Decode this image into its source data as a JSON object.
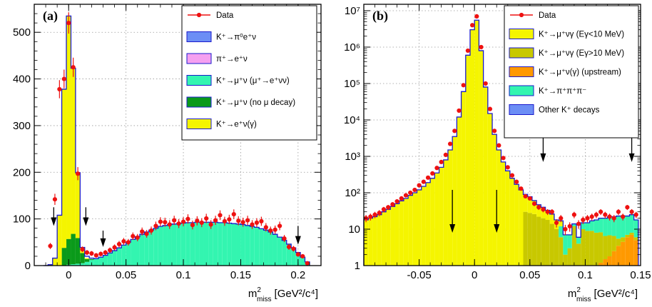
{
  "colors": {
    "k_pi0": "#6c8ef5",
    "pi_e": "#f5a0f0",
    "k_mu_decay": "#33f5b0",
    "k_mu_nodecay": "#0a9a1a",
    "k_e": "#f5f500",
    "data": "#ee1111",
    "outline": "#1a1acc",
    "k_mu_low": "#f5f500",
    "k_mu_high": "#c8c800",
    "k_mu_up": "#ff9900",
    "k_3pi": "#33f5b0",
    "other": "#6c8ef5"
  },
  "chart_data": [
    {
      "type": "bar",
      "label": "(a)",
      "xlabel_main": "m",
      "xlabel_sup": "2",
      "xlabel_sub": "miss",
      "xlabel_unit": "[GeV²/c⁴]",
      "xlim": [
        -0.03,
        0.22
      ],
      "ylim": [
        0,
        560
      ],
      "xticks": [
        {
          "v": 0,
          "t": "0"
        },
        {
          "v": 0.05,
          "t": "0.05"
        },
        {
          "v": 0.1,
          "t": "0.1"
        },
        {
          "v": 0.15,
          "t": "0.15"
        },
        {
          "v": 0.2,
          "t": "0.2"
        }
      ],
      "yticks": [
        {
          "v": 0,
          "t": "0"
        },
        {
          "v": 100,
          "t": "100"
        },
        {
          "v": 200,
          "t": "200"
        },
        {
          "v": 300,
          "t": "300"
        },
        {
          "v": 400,
          "t": "400"
        },
        {
          "v": 500,
          "t": "500"
        }
      ],
      "legend": [
        {
          "kind": "data",
          "color": "data",
          "text": "Data"
        },
        {
          "kind": "box",
          "color": "k_pi0",
          "text": "K⁺→π⁰e⁺ν"
        },
        {
          "kind": "box",
          "color": "pi_e",
          "text": "π⁺→e⁺ν"
        },
        {
          "kind": "box",
          "color": "k_mu_decay",
          "text": "K⁺→μ⁺ν (μ⁺→e⁺νν)"
        },
        {
          "kind": "box",
          "color": "k_mu_nodecay",
          "text": "K⁺→μ⁺ν (no μ decay)"
        },
        {
          "kind": "box",
          "color": "k_e",
          "text": "K⁺→e⁺ν(γ)"
        }
      ],
      "arrows": [
        {
          "x": -0.013,
          "y_top": 125,
          "y_bot": 85
        },
        {
          "x": 0.015,
          "y_top": 125,
          "y_bot": 85
        },
        {
          "x": 0.03,
          "y_top": 75,
          "y_bot": 40
        },
        {
          "x": 0.2,
          "y_top": 85,
          "y_bot": 45
        }
      ],
      "bin_width": 0.004,
      "stacks": [
        {
          "color": "k_mu_decay",
          "x": [
            -0.012,
            -0.008,
            -0.004,
            0.0,
            0.004,
            0.008,
            0.012,
            0.016,
            0.02,
            0.024,
            0.028,
            0.032,
            0.036,
            0.04,
            0.044,
            0.048,
            0.052,
            0.056,
            0.06,
            0.064,
            0.068,
            0.072,
            0.076,
            0.08,
            0.084,
            0.088,
            0.092,
            0.096,
            0.1,
            0.104,
            0.108,
            0.112,
            0.116,
            0.12,
            0.124,
            0.128,
            0.132,
            0.136,
            0.14,
            0.144,
            0.148,
            0.152,
            0.156,
            0.16,
            0.164,
            0.168,
            0.172,
            0.176,
            0.18,
            0.184,
            0.188,
            0.192,
            0.196,
            0.2,
            0.204,
            0.208
          ],
          "values": [
            0,
            0,
            0,
            2,
            3,
            4,
            5,
            8,
            12,
            15,
            18,
            22,
            27,
            32,
            38,
            44,
            50,
            56,
            62,
            67,
            72,
            76,
            80,
            84,
            86,
            88,
            89,
            90,
            91,
            92,
            92,
            93,
            93,
            93,
            93,
            93,
            92,
            92,
            91,
            90,
            89,
            88,
            86,
            84,
            82,
            79,
            76,
            72,
            67,
            61,
            54,
            46,
            38,
            28,
            18,
            8
          ]
        },
        {
          "color": "k_mu_nodecay",
          "x": [
            -0.004,
            0.0,
            0.004,
            0.008,
            0.012,
            0.016,
            0.02
          ],
          "values": [
            38,
            55,
            65,
            55,
            22,
            6,
            2
          ]
        },
        {
          "color": "k_e",
          "x": [
            -0.016,
            -0.012,
            -0.008,
            -0.004,
            0.0,
            0.004,
            0.008,
            0.012,
            0.016
          ],
          "values": [
            2,
            16,
            108,
            340,
            478,
            355,
            140,
            12,
            2
          ]
        }
      ],
      "total_outline": {
        "x": [
          -0.02,
          -0.016,
          -0.012,
          -0.008,
          -0.004,
          0.0,
          0.004,
          0.008,
          0.012,
          0.016,
          0.02,
          0.024,
          0.028,
          0.032,
          0.036,
          0.04,
          0.044,
          0.048,
          0.052,
          0.056,
          0.06,
          0.064,
          0.068,
          0.072,
          0.076,
          0.08,
          0.084,
          0.088,
          0.092,
          0.096,
          0.1,
          0.104,
          0.108,
          0.112,
          0.116,
          0.12,
          0.124,
          0.128,
          0.132,
          0.136,
          0.14,
          0.144,
          0.148,
          0.152,
          0.156,
          0.16,
          0.164,
          0.168,
          0.172,
          0.176,
          0.18,
          0.184,
          0.188,
          0.192,
          0.196,
          0.2,
          0.204,
          0.208
        ],
        "values": [
          0,
          2,
          16,
          108,
          378,
          535,
          423,
          199,
          39,
          20,
          16,
          15,
          18,
          22,
          27,
          32,
          38,
          44,
          50,
          56,
          62,
          67,
          72,
          76,
          80,
          84,
          86,
          88,
          89,
          90,
          91,
          92,
          92,
          93,
          93,
          93,
          93,
          93,
          92,
          92,
          91,
          90,
          89,
          88,
          86,
          84,
          82,
          79,
          76,
          72,
          67,
          61,
          54,
          46,
          38,
          28,
          18,
          8
        ]
      },
      "data_points": {
        "x": [
          -0.02,
          -0.016,
          -0.012,
          -0.008,
          -0.004,
          0.0,
          0.004,
          0.008,
          0.012,
          0.016,
          0.02,
          0.024,
          0.028,
          0.032,
          0.036,
          0.04,
          0.044,
          0.048,
          0.052,
          0.056,
          0.06,
          0.064,
          0.068,
          0.072,
          0.076,
          0.08,
          0.084,
          0.088,
          0.092,
          0.096,
          0.1,
          0.104,
          0.108,
          0.112,
          0.116,
          0.12,
          0.124,
          0.128,
          0.132,
          0.136,
          0.14,
          0.144,
          0.148,
          0.152,
          0.156,
          0.16,
          0.164,
          0.168,
          0.172,
          0.176,
          0.18,
          0.184,
          0.188,
          0.192,
          0.196,
          0.2,
          0.204,
          0.208
        ],
        "values": [
          0,
          42,
          142,
          378,
          400,
          520,
          425,
          197,
          35,
          28,
          26,
          22,
          25,
          28,
          33,
          39,
          46,
          52,
          50,
          63,
          60,
          73,
          68,
          75,
          85,
          94,
          93,
          88,
          97,
          90,
          94,
          100,
          87,
          96,
          92,
          101,
          88,
          97,
          108,
          95,
          99,
          110,
          96,
          93,
          97,
          88,
          92,
          95,
          82,
          75,
          77,
          85,
          58,
          40,
          36,
          24,
          20,
          5
        ]
      }
    },
    {
      "type": "bar",
      "label": "(b)",
      "log_y": true,
      "xlabel_main": "m",
      "xlabel_sup": "2",
      "xlabel_sub": "miss",
      "xlabel_unit": "[GeV²/c⁴]",
      "xlim": [
        -0.1,
        0.15
      ],
      "ylim": [
        1,
        15000000
      ],
      "xticks": [
        {
          "v": -0.05,
          "t": "-0.05"
        },
        {
          "v": 0,
          "t": "0"
        },
        {
          "v": 0.05,
          "t": "0.05"
        },
        {
          "v": 0.1,
          "t": "0.1"
        },
        {
          "v": 0.15,
          "t": "0.15"
        }
      ],
      "yticks": [
        {
          "v": 1,
          "t": "1"
        },
        {
          "v": 10,
          "t": "10"
        },
        {
          "v": 100,
          "t": "10²"
        },
        {
          "v": 1000,
          "t": "10³"
        },
        {
          "v": 10000,
          "t": "10⁴"
        },
        {
          "v": 100000,
          "t": "10⁵"
        },
        {
          "v": 1000000,
          "t": "10⁶"
        },
        {
          "v": 10000000,
          "t": "10⁷"
        }
      ],
      "legend": [
        {
          "kind": "data",
          "color": "data",
          "text": "Data"
        },
        {
          "kind": "box",
          "color": "k_mu_low",
          "text": "K⁺→μ⁺νγ (Eγ<10 MeV)"
        },
        {
          "kind": "box",
          "color": "k_mu_high",
          "text": "K⁺→μ⁺νγ (Eγ>10 MeV)"
        },
        {
          "kind": "box",
          "color": "k_mu_up",
          "text": "K⁺→μ⁺ν(γ) (upstream)"
        },
        {
          "kind": "box",
          "color": "k_3pi",
          "text": "K⁺→π⁺π⁺π⁻"
        },
        {
          "kind": "box",
          "color": "other",
          "text": "Other K⁺ decays"
        }
      ],
      "arrows": [
        {
          "x": -0.02,
          "y_top": 120,
          "y_bot": 8
        },
        {
          "x": 0.02,
          "y_top": 120,
          "y_bot": 8
        },
        {
          "x": 0.062,
          "y_top": 15000,
          "y_bot": 700
        },
        {
          "x": 0.142,
          "y_top": 15000,
          "y_bot": 700
        }
      ],
      "bin_width": 0.004,
      "stacks": [
        {
          "color": "k_mu_up",
          "x": [
            0.098,
            0.102,
            0.106,
            0.11,
            0.114,
            0.118,
            0.122,
            0.126,
            0.13,
            0.134,
            0.138,
            0.142,
            0.146
          ],
          "values": [
            1,
            1,
            1,
            1,
            1.2,
            1.5,
            1.8,
            2.5,
            3.5,
            4.5,
            6,
            7,
            5
          ]
        },
        {
          "color": "k_mu_high",
          "x": [
            0.046,
            0.05,
            0.054,
            0.058,
            0.062,
            0.066,
            0.07,
            0.074,
            0.078,
            0.082,
            0.086,
            0.09,
            0.094,
            0.098,
            0.102,
            0.106,
            0.11,
            0.114,
            0.118,
            0.122,
            0.126,
            0.13,
            0.134,
            0.138,
            0.142,
            0.146
          ],
          "values": [
            30,
            28,
            26,
            22,
            20,
            18,
            14,
            10,
            6,
            2,
            3,
            12,
            4,
            9,
            8,
            8,
            7,
            7,
            5,
            5,
            4,
            2,
            1.5,
            1,
            1,
            1
          ]
        },
        {
          "color": "k_3pi",
          "x": [
            0.078,
            0.082,
            0.086,
            0.09,
            0.094,
            0.098,
            0.102,
            0.106,
            0.11,
            0.114,
            0.118,
            0.122,
            0.126,
            0.13,
            0.134,
            0.138,
            0.142,
            0.146
          ],
          "values": [
            6,
            5,
            4,
            2,
            2,
            5,
            6,
            8,
            10,
            12,
            14,
            15,
            16,
            18,
            18,
            16,
            18,
            12
          ]
        },
        {
          "color": "k_mu_low",
          "x": [
            -0.098,
            -0.094,
            -0.09,
            -0.086,
            -0.082,
            -0.078,
            -0.074,
            -0.07,
            -0.066,
            -0.062,
            -0.058,
            -0.054,
            -0.05,
            -0.046,
            -0.042,
            -0.038,
            -0.034,
            -0.03,
            -0.026,
            -0.022,
            -0.018,
            -0.014,
            -0.01,
            -0.006,
            -0.002,
            0.002,
            0.006,
            0.01,
            0.014,
            0.018,
            0.022,
            0.026,
            0.03,
            0.034,
            0.038,
            0.042,
            0.046,
            0.05,
            0.054,
            0.058,
            0.062,
            0.066,
            0.07,
            0.074,
            0.078
          ],
          "values": [
            18,
            20,
            22,
            25,
            30,
            35,
            42,
            50,
            60,
            70,
            85,
            100,
            120,
            150,
            190,
            250,
            350,
            500,
            800,
            1500,
            3500,
            12000,
            60000,
            600000,
            3000000,
            5500000,
            800000,
            80000,
            15000,
            4000,
            1500,
            700,
            400,
            250,
            170,
            120,
            60,
            50,
            35,
            25,
            20,
            15,
            12,
            8,
            5
          ]
        }
      ],
      "total_outline": {
        "x": [
          -0.098,
          -0.094,
          -0.09,
          -0.086,
          -0.082,
          -0.078,
          -0.074,
          -0.07,
          -0.066,
          -0.062,
          -0.058,
          -0.054,
          -0.05,
          -0.046,
          -0.042,
          -0.038,
          -0.034,
          -0.03,
          -0.026,
          -0.022,
          -0.018,
          -0.014,
          -0.01,
          -0.006,
          -0.002,
          0.002,
          0.006,
          0.01,
          0.014,
          0.018,
          0.022,
          0.026,
          0.03,
          0.034,
          0.038,
          0.042,
          0.046,
          0.05,
          0.054,
          0.058,
          0.062,
          0.066,
          0.07,
          0.074,
          0.078,
          0.082,
          0.086,
          0.09,
          0.094,
          0.098,
          0.102,
          0.106,
          0.11,
          0.114,
          0.118,
          0.122,
          0.126,
          0.13,
          0.134,
          0.138,
          0.142,
          0.146
        ],
        "values": [
          18,
          20,
          22,
          25,
          30,
          35,
          42,
          50,
          60,
          70,
          85,
          100,
          120,
          150,
          190,
          250,
          350,
          500,
          800,
          1500,
          3500,
          12000,
          60000,
          600000,
          3000000,
          5500000,
          800000,
          80000,
          15000,
          4000,
          1500,
          700,
          400,
          250,
          170,
          120,
          90,
          78,
          61,
          47,
          40,
          33,
          26,
          18,
          17,
          7,
          7,
          14,
          6,
          15,
          15,
          17,
          18,
          20,
          20,
          22,
          22,
          23,
          23,
          23,
          25,
          18
        ]
      },
      "data_points": {
        "x": [
          -0.098,
          -0.094,
          -0.09,
          -0.086,
          -0.082,
          -0.078,
          -0.074,
          -0.07,
          -0.066,
          -0.062,
          -0.058,
          -0.054,
          -0.05,
          -0.046,
          -0.042,
          -0.038,
          -0.034,
          -0.03,
          -0.026,
          -0.022,
          -0.018,
          -0.014,
          -0.01,
          -0.006,
          -0.002,
          0.002,
          0.006,
          0.01,
          0.014,
          0.018,
          0.022,
          0.026,
          0.03,
          0.034,
          0.038,
          0.042,
          0.046,
          0.05,
          0.054,
          0.058,
          0.062,
          0.066,
          0.07,
          0.074,
          0.078,
          0.082,
          0.086,
          0.09,
          0.094,
          0.098,
          0.102,
          0.106,
          0.11,
          0.114,
          0.118,
          0.122,
          0.126,
          0.13,
          0.134,
          0.138,
          0.142,
          0.146
        ],
        "values": [
          20,
          22,
          25,
          28,
          35,
          40,
          48,
          58,
          70,
          85,
          100,
          120,
          160,
          200,
          260,
          340,
          480,
          700,
          1100,
          2200,
          5000,
          18000,
          90000,
          800000,
          4000000,
          7000000,
          1000000,
          100000,
          20000,
          5000,
          2000,
          900,
          500,
          300,
          200,
          130,
          80,
          70,
          50,
          40,
          35,
          30,
          30,
          15,
          20,
          10,
          12,
          25,
          14,
          18,
          20,
          22,
          25,
          30,
          25,
          22,
          20,
          30,
          22,
          40,
          30,
          25
        ]
      }
    }
  ]
}
